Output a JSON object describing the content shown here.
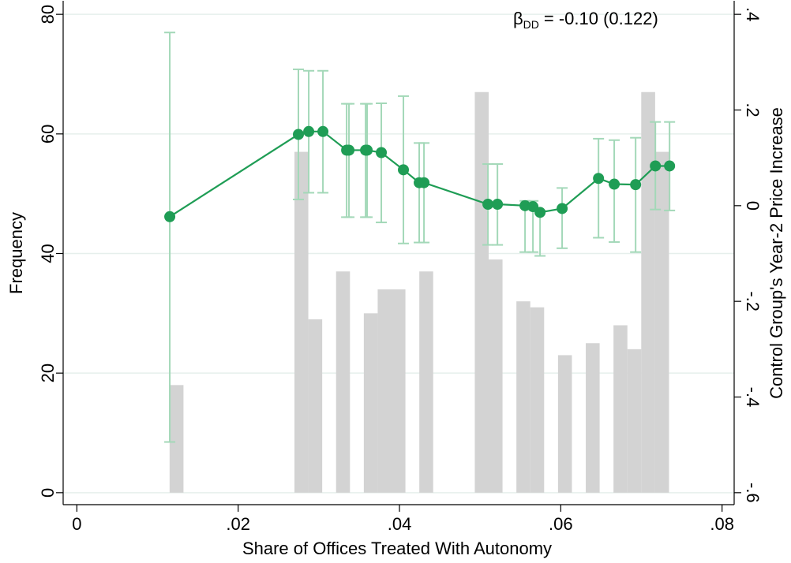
{
  "chart_data": {
    "type": "histogram",
    "xlabel": "Share of Offices Treated With Autonomy",
    "ylabel": "Frequency",
    "y2label": "Control Group's Year-2 Price Increase",
    "annotation": {
      "symbol": "β",
      "subscript": "DD",
      "text": "= -0.10 (0.122)"
    },
    "bins": [
      0.0115,
      0.01322,
      0.01494,
      0.01666,
      0.01838,
      0.0201,
      0.02182,
      0.02354,
      0.02526,
      0.02698,
      0.0287,
      0.03042,
      0.03214,
      0.03386,
      0.03558,
      0.0373,
      0.03902,
      0.04074,
      0.04246,
      0.04418,
      0.0459,
      0.04762,
      0.04934,
      0.05106,
      0.05278,
      0.0545,
      0.05622,
      0.05794,
      0.05966,
      0.06138,
      0.0631,
      0.06482,
      0.06654,
      0.06826,
      0.06998,
      0.0717,
      0.07342
    ],
    "values": [
      18,
      0,
      0,
      0,
      0,
      0,
      0,
      0,
      0,
      57,
      29,
      0,
      37,
      0,
      30,
      34,
      34,
      0,
      37,
      0,
      0,
      0,
      67,
      39,
      0,
      32,
      31,
      0,
      23,
      0,
      25,
      0,
      28,
      24,
      67,
      57
    ],
    "color": "#d3d3d3",
    "xlim": [
      -0.0017,
      0.0815
    ],
    "xticks": [
      0,
      {
        "value": 0.02,
        "label": ".02"
      },
      {
        "value": 0.04,
        "label": ".04"
      },
      {
        "value": 0.06,
        "label": ".06"
      },
      {
        "value": 0.08,
        "label": ".08"
      }
    ],
    "ylim": [
      -2,
      82
    ],
    "yticks": [
      0,
      20,
      40,
      60,
      80
    ],
    "y2lim": [
      -0.625,
      0.425
    ],
    "y2ticks": [
      {
        "value": -0.6,
        "label": "-.6"
      },
      {
        "value": -0.4,
        "label": "-.4"
      },
      {
        "value": -0.2,
        "label": "-.2"
      },
      0,
      {
        "value": 0.2,
        "label": ".2"
      },
      {
        "value": 0.4,
        "label": ".4"
      }
    ],
    "grid": true,
    "series": [
      {
        "type": "line",
        "axis": "y2",
        "color": "#1f9d55",
        "error_color": "#a3d8b8",
        "x": [
          0.01152,
          0.02747,
          0.02875,
          0.03051,
          0.03345,
          0.03374,
          0.0358,
          0.03599,
          0.03775,
          0.04049,
          0.04245,
          0.04304,
          0.05097,
          0.05215,
          0.05557,
          0.05655,
          0.05743,
          0.06017,
          0.06468,
          0.06663,
          0.06928,
          0.07173,
          0.07349
        ],
        "values": [
          -0.023,
          0.149,
          0.155,
          0.155,
          0.116,
          0.116,
          0.116,
          0.116,
          0.111,
          0.075,
          0.048,
          0.048,
          0.003,
          0.003,
          0,
          -0.002,
          -0.014,
          -0.006,
          0.057,
          0.045,
          0.044,
          0.083,
          0.083
        ],
        "lower": [
          -0.494,
          0.013,
          0.027,
          0.027,
          -0.024,
          -0.024,
          -0.024,
          -0.024,
          -0.035,
          -0.079,
          -0.077,
          -0.077,
          -0.082,
          -0.082,
          -0.097,
          -0.097,
          -0.105,
          -0.089,
          -0.067,
          -0.076,
          -0.097,
          -0.008,
          -0.01
        ],
        "upper": [
          0.362,
          0.285,
          0.282,
          0.282,
          0.213,
          0.213,
          0.213,
          0.213,
          0.214,
          0.229,
          0.131,
          0.131,
          0.087,
          0.087,
          0.01,
          0.01,
          -0.01,
          0.037,
          0.14,
          0.137,
          0.142,
          0.175,
          0.175
        ]
      }
    ]
  }
}
